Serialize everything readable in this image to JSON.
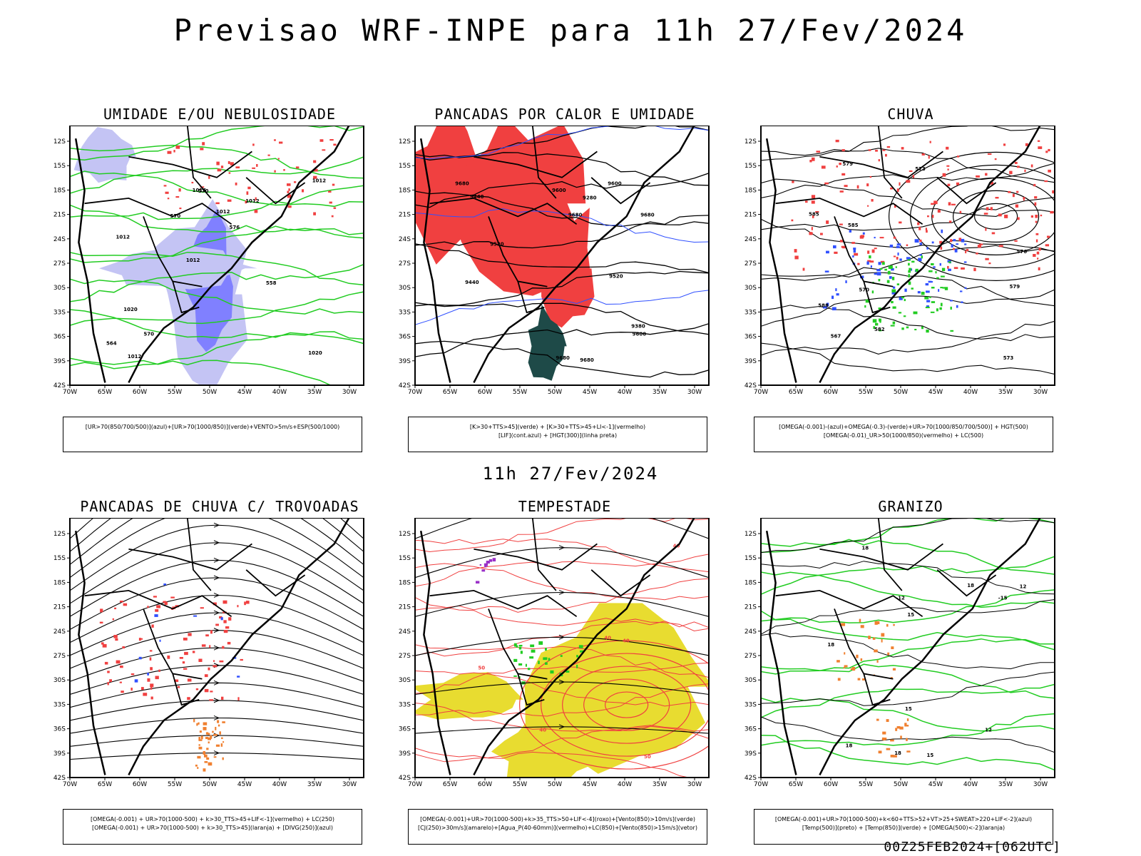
{
  "header": {
    "title": "Previsao WRF-INPE  para 11h 27/Fev/2024"
  },
  "subheader": {
    "title": "11h 27/Fev/2024"
  },
  "footer": {
    "run_stamp": "00Z25FEB2024+[062UTC]"
  },
  "axes": {
    "lat_labels": [
      "12S",
      "15S",
      "18S",
      "21S",
      "24S",
      "27S",
      "30S",
      "33S",
      "36S",
      "39S",
      "42S"
    ],
    "lon_labels": [
      "70W",
      "65W",
      "60W",
      "55W",
      "50W",
      "45W",
      "40W",
      "35W",
      "30W"
    ]
  },
  "colors": {
    "humidity_blue": "#8080ff",
    "humidity_light": "#c4c4f4",
    "green": "#22cc22",
    "red": "#f04040",
    "dark_teal": "#1e4a48",
    "blue": "#3050ff",
    "orange": "#f08030",
    "yellow": "#e8dc30",
    "purple": "#9a30c8"
  },
  "panels": [
    {
      "id": "umidade",
      "title": "UMIDADE E/OU NEBULOSIDADE",
      "legend": [
        "[UR>70(850/700/500)](azul)+[UR>70(1000/850)](verde)+VENTO>5m/s+ESP(500/1000)"
      ],
      "contour_labels": [
        "1020",
        "1012",
        "1012",
        "1012",
        "1012",
        "1012",
        "1016",
        "1012",
        "1020",
        "570",
        "564",
        "570",
        "570",
        "576",
        "558"
      ]
    },
    {
      "id": "pancadas-calor",
      "title": "PANCADAS POR CALOR E UMIDADE",
      "legend": [
        "[K>30+TTS>45](verde) + [K>30+TTS>45+LI<-1](vermelho)",
        "[LIF](cont.azul) + [HGT(300)](linha preta)"
      ],
      "contour_labels": [
        "9680",
        "9600",
        "9680",
        "9680",
        "9680",
        "9600",
        "9680",
        "9600",
        "9520",
        "9440",
        "9380",
        "9280",
        "9520",
        "9440"
      ]
    },
    {
      "id": "chuva",
      "title": "CHUVA",
      "legend": [
        "[OMEGA(-0.001)-(azul)+OMEGA(-0.3)-(verde)+UR>70(1000/850/700/500)] + HGT(500)",
        "[OMEGA(-0.01)_UR>50(1000/850)(vermelho) + LC(500)"
      ],
      "contour_labels": [
        "585",
        "588",
        "585",
        "582",
        "579",
        "576",
        "573",
        "570",
        "567",
        "579",
        "573"
      ]
    },
    {
      "id": "pancadas-trovoadas",
      "title": "PANCADAS DE CHUVA C/ TROVOADAS",
      "legend": [
        "[OMEGA(-0.001) + UR>70(1000-500) + k>30_TTS>45+LIF<-1](vermelho) + LC(250)",
        "[OMEGA(-0.001) + UR>70(1000-500) + k>30_TTS>45](laranja) + [DIVG(250)](azul)"
      ],
      "contour_labels": []
    },
    {
      "id": "tempestade",
      "title": "TEMPESTADE",
      "legend": [
        "[OMEGA(-0.001)+UR>70(1000-500)+k>35_TTS>50+LIF<-4](roxo)+[Vento(850)>10m/s](verde)",
        "[CJ(250)>30m/s](amarelo)+[Agua_P(40-60mm)](vermelho)+LC(850)+[Vento(850)>15m/s](vetor)"
      ],
      "contour_labels": [
        "40",
        "40",
        "50",
        "40",
        "50",
        "40"
      ]
    },
    {
      "id": "granizo",
      "title": "GRANIZO",
      "legend": [
        "[OMEGA(-0.001)+UR>70(1000-500)+k<60+TTS>52+VT>25+SWEAT>220+LIF<-2](azul)",
        "[Temp(500)](preto) + [Temp(850)](verde) + [OMEGA(500)<-2](laranja)"
      ],
      "contour_labels": [
        "18",
        "18",
        "15",
        "18",
        "15",
        "12",
        "-12",
        "-15",
        "18",
        "15",
        "12",
        "18"
      ]
    }
  ]
}
